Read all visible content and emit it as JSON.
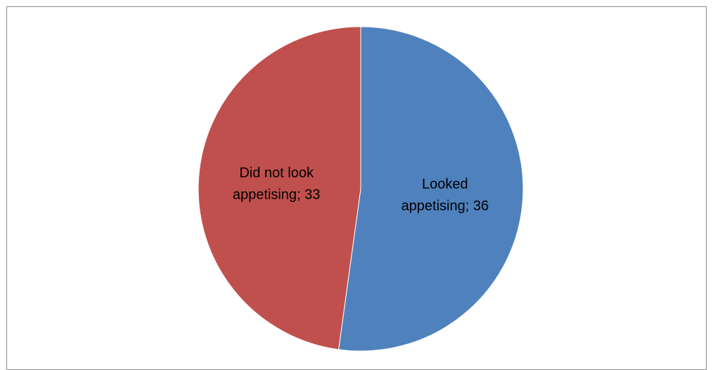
{
  "chart_data": {
    "type": "pie",
    "title": "",
    "start_angle": "12 o'clock",
    "direction": "clockwise",
    "slices": [
      {
        "label": "Looked appetising",
        "value": 36,
        "label_lines": [
          "Looked",
          "appetising; 36"
        ],
        "color": "#4F81BD"
      },
      {
        "label": "Did not look appetising",
        "value": 33,
        "label_lines": [
          "Did not look",
          "appetising; 33"
        ],
        "color": "#C0504D"
      }
    ],
    "legend": "none"
  }
}
